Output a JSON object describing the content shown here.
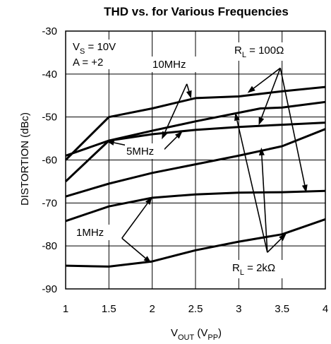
{
  "chart_data": {
    "type": "line",
    "title": "THD vs. for Various Frequencies",
    "xlabel": {
      "main": "V",
      "sub1": "OUT",
      "mid": " (V",
      "sub2": "PP",
      "end": ")"
    },
    "ylabel": "DISTORTION (dBc)",
    "xlim": [
      1,
      4
    ],
    "ylim": [
      -90,
      -30
    ],
    "x_ticks": [
      "1",
      "1.5",
      "2",
      "2.5",
      "3",
      "3.5",
      "4"
    ],
    "y_ticks": [
      "-30",
      "-40",
      "-50",
      "-60",
      "-70",
      "-80",
      "-90"
    ],
    "grid": true,
    "conditions": {
      "vs": {
        "main": "V",
        "sub": "S",
        "rest": " = 10V"
      },
      "gain": "A = +2"
    },
    "labels": {
      "f10": "10MHz",
      "f5": "5MHz",
      "f1": "1MHz",
      "rl100": {
        "main": "R",
        "sub": "L",
        "rest": " = 100Ω"
      },
      "rl2k": {
        "main": "R",
        "sub": "L",
        "rest": " = 2kΩ"
      }
    },
    "series": [
      {
        "x": [
          1,
          1.5,
          2,
          2.5,
          3,
          3.5,
          4
        ],
        "y": [
          -60,
          -50,
          -48,
          -45.6,
          -45.2,
          -44,
          -43
        ]
      },
      {
        "x": [
          1,
          1.5,
          2,
          2.5,
          3,
          3.25,
          3.5,
          4
        ],
        "y": [
          -65,
          -55.5,
          -53.2,
          -51,
          -49,
          -48,
          -47.8,
          -46.5
        ]
      },
      {
        "x": [
          1,
          1.5,
          2,
          2.5,
          3,
          3.5,
          4
        ],
        "y": [
          -59,
          -55.5,
          -54,
          -53,
          -52.3,
          -51.8,
          -51.3
        ]
      },
      {
        "x": [
          1,
          1.5,
          2,
          2.5,
          3,
          3.5,
          4
        ],
        "y": [
          -68.5,
          -65.5,
          -63,
          -61,
          -59,
          -56.8,
          -52.8
        ]
      },
      {
        "x": [
          1,
          1.5,
          2,
          2.5,
          3,
          3.5,
          4
        ],
        "y": [
          -74.2,
          -70.8,
          -68.8,
          -68,
          -67.6,
          -67.5,
          -67.2
        ]
      },
      {
        "x": [
          1,
          1.5,
          2,
          2.5,
          3,
          3.5,
          4
        ],
        "y": [
          -84.6,
          -84.8,
          -83.6,
          -81,
          -79,
          -77.3,
          -73.8
        ]
      }
    ],
    "arrows": [
      {
        "label": "f10",
        "from": [
          2.4,
          -42.3
        ],
        "to": [
          2.11,
          -55.2
        ]
      },
      {
        "label": "f10",
        "from": [
          2.4,
          -42.3
        ],
        "to": [
          2.45,
          -45.7
        ]
      },
      {
        "label": "f5",
        "from": [
          2.1,
          -58.3
        ],
        "to": [
          1.47,
          -55.6
        ]
      },
      {
        "label": "f5",
        "from": [
          2.1,
          -58.3
        ],
        "to": [
          2.35,
          -53.3
        ]
      },
      {
        "label": "f1",
        "from": [
          1.65,
          -78.2
        ],
        "to": [
          2.0,
          -68.6
        ]
      },
      {
        "label": "f1",
        "from": [
          1.65,
          -78.2
        ],
        "to": [
          1.99,
          -84.0
        ]
      },
      {
        "label": "rl100",
        "from": [
          3.48,
          -38.6
        ],
        "to": [
          3.1,
          -44.4
        ]
      },
      {
        "label": "rl100",
        "from": [
          3.48,
          -38.6
        ],
        "to": [
          3.23,
          -51.9
        ]
      },
      {
        "label": "rl100",
        "from": [
          3.48,
          -38.6
        ],
        "to": [
          3.78,
          -67.6
        ]
      },
      {
        "label": "rl2k",
        "from": [
          3.33,
          -81.5
        ],
        "to": [
          2.96,
          -49.0
        ]
      },
      {
        "label": "rl2k",
        "from": [
          3.33,
          -81.5
        ],
        "to": [
          3.26,
          -57.1
        ]
      },
      {
        "label": "rl2k",
        "from": [
          3.33,
          -81.5
        ],
        "to": [
          3.55,
          -77.1
        ]
      }
    ]
  }
}
